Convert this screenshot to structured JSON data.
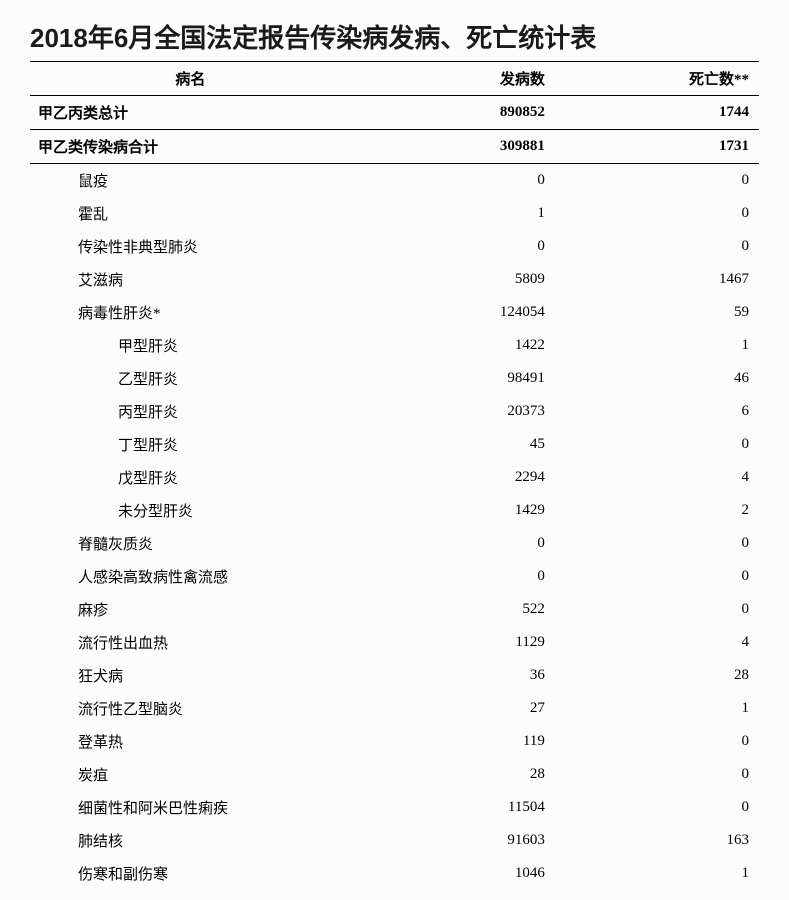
{
  "title": "2018年6月全国法定报告传染病发病、死亡统计表",
  "columns": {
    "name": "病名",
    "cases": "发病数",
    "deaths": "死亡数**"
  },
  "table": {
    "background_color": "#fcfcfc",
    "text_color": "#000000",
    "border_color": "#000000",
    "title_fontsize": 26,
    "header_fontsize": 15,
    "body_fontsize": 15,
    "col_widths_pct": [
      44,
      28,
      28
    ]
  },
  "rows": [
    {
      "name": "甲乙丙类总计",
      "cases": "890852",
      "deaths": "1744",
      "bold": true,
      "indent": 0
    },
    {
      "name": "甲乙类传染病合计",
      "cases": "309881",
      "deaths": "1731",
      "bold": true,
      "indent": 0
    },
    {
      "name": "鼠疫",
      "cases": "0",
      "deaths": "0",
      "bold": false,
      "indent": 1
    },
    {
      "name": "霍乱",
      "cases": "1",
      "deaths": "0",
      "bold": false,
      "indent": 1
    },
    {
      "name": "传染性非典型肺炎",
      "cases": "0",
      "deaths": "0",
      "bold": false,
      "indent": 1
    },
    {
      "name": "艾滋病",
      "cases": "5809",
      "deaths": "1467",
      "bold": false,
      "indent": 1
    },
    {
      "name": "病毒性肝炎*",
      "cases": "124054",
      "deaths": "59",
      "bold": false,
      "indent": 1
    },
    {
      "name": "甲型肝炎",
      "cases": "1422",
      "deaths": "1",
      "bold": false,
      "indent": 2
    },
    {
      "name": "乙型肝炎",
      "cases": "98491",
      "deaths": "46",
      "bold": false,
      "indent": 2
    },
    {
      "name": "丙型肝炎",
      "cases": "20373",
      "deaths": "6",
      "bold": false,
      "indent": 2
    },
    {
      "name": "丁型肝炎",
      "cases": "45",
      "deaths": "0",
      "bold": false,
      "indent": 2
    },
    {
      "name": "戊型肝炎",
      "cases": "2294",
      "deaths": "4",
      "bold": false,
      "indent": 2
    },
    {
      "name": "未分型肝炎",
      "cases": "1429",
      "deaths": "2",
      "bold": false,
      "indent": 2
    },
    {
      "name": "脊髓灰质炎",
      "cases": "0",
      "deaths": "0",
      "bold": false,
      "indent": 1
    },
    {
      "name": "人感染高致病性禽流感",
      "cases": "0",
      "deaths": "0",
      "bold": false,
      "indent": 1
    },
    {
      "name": "麻疹",
      "cases": "522",
      "deaths": "0",
      "bold": false,
      "indent": 1
    },
    {
      "name": "流行性出血热",
      "cases": "1129",
      "deaths": "4",
      "bold": false,
      "indent": 1
    },
    {
      "name": "狂犬病",
      "cases": "36",
      "deaths": "28",
      "bold": false,
      "indent": 1
    },
    {
      "name": "流行性乙型脑炎",
      "cases": "27",
      "deaths": "1",
      "bold": false,
      "indent": 1
    },
    {
      "name": "登革热",
      "cases": "119",
      "deaths": "0",
      "bold": false,
      "indent": 1
    },
    {
      "name": "炭疽",
      "cases": "28",
      "deaths": "0",
      "bold": false,
      "indent": 1
    },
    {
      "name": "细菌性和阿米巴性痢疾",
      "cases": "11504",
      "deaths": "0",
      "bold": false,
      "indent": 1
    },
    {
      "name": "肺结核",
      "cases": "91603",
      "deaths": "163",
      "bold": false,
      "indent": 1
    },
    {
      "name": "伤寒和副伤寒",
      "cases": "1046",
      "deaths": "1",
      "bold": false,
      "indent": 1
    }
  ]
}
